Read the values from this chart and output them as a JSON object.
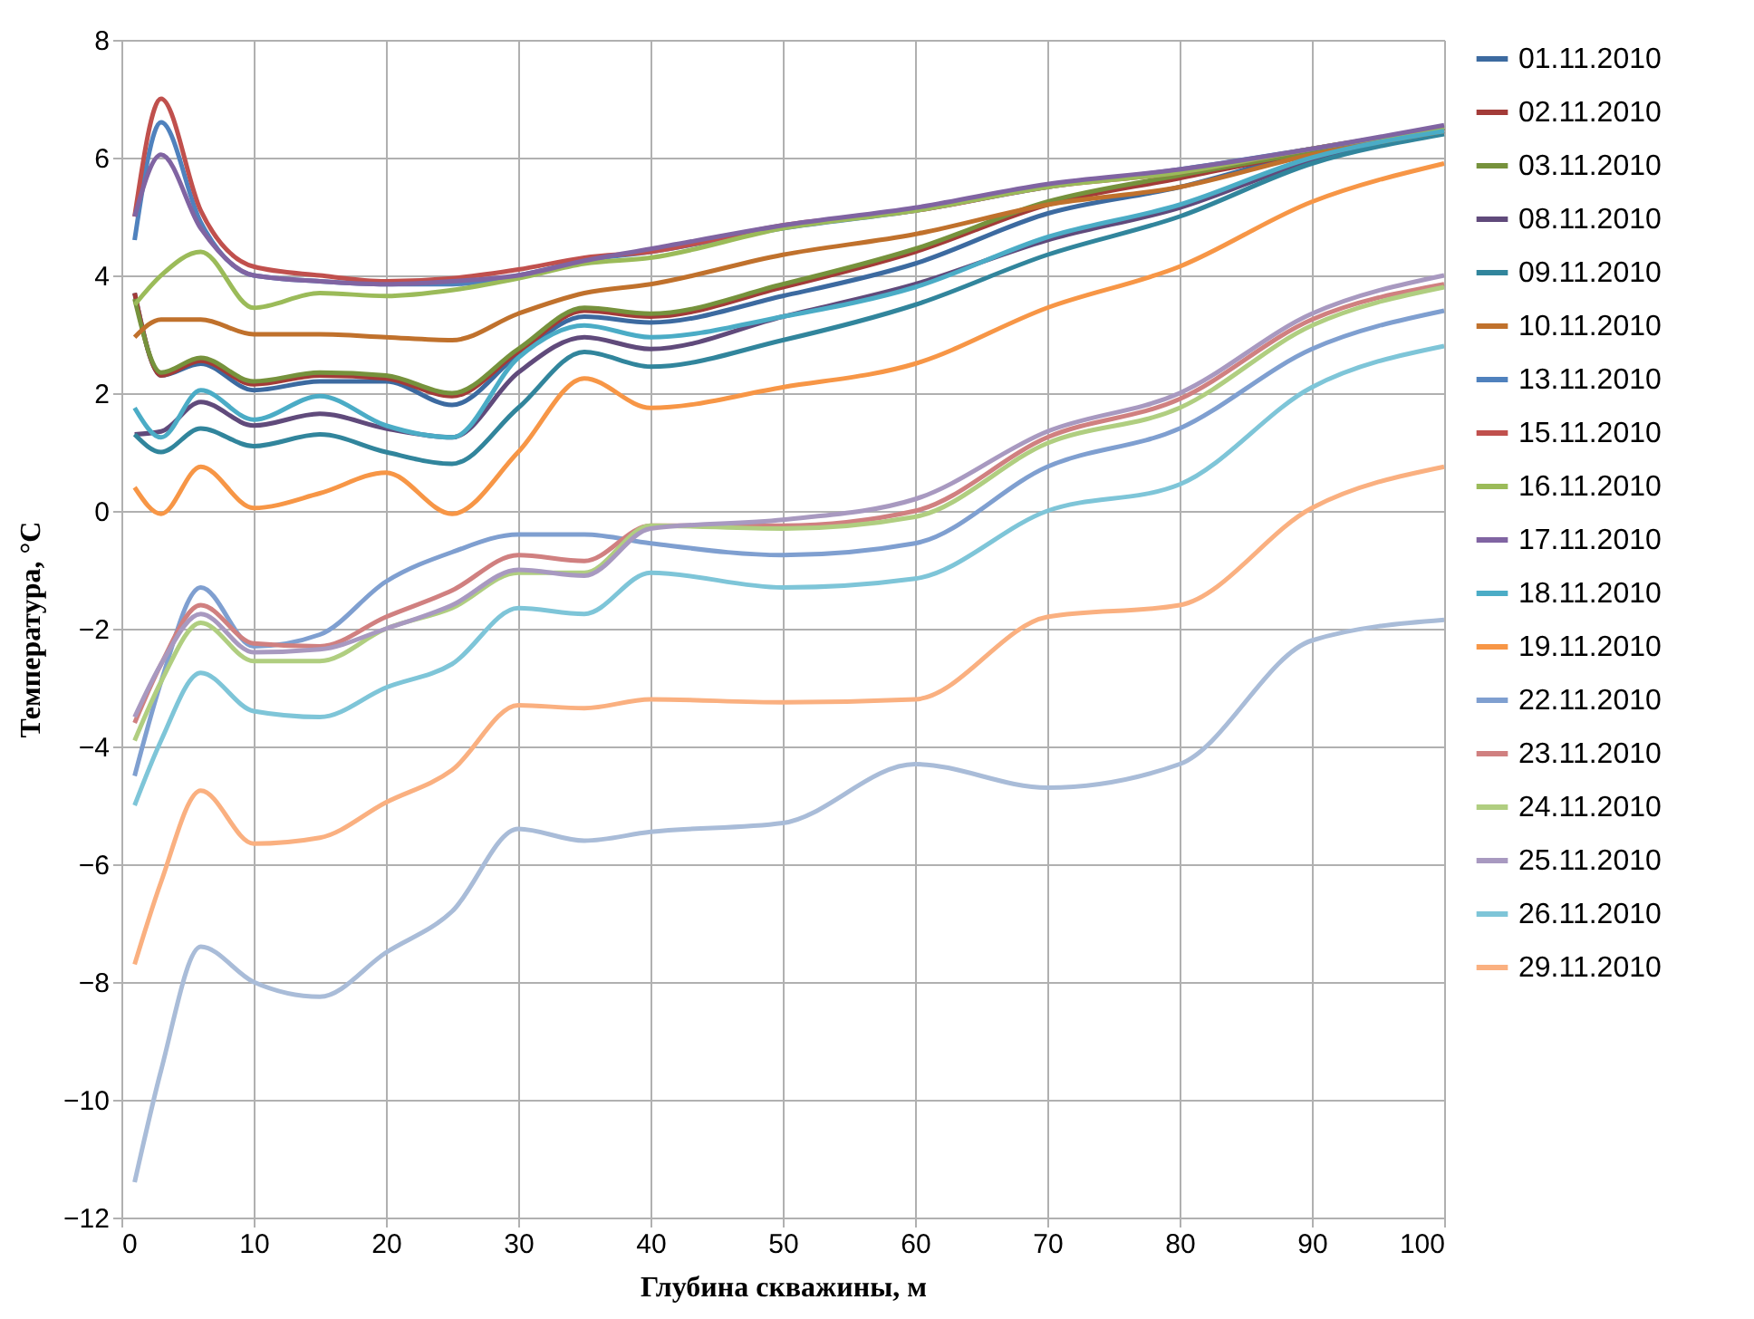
{
  "chart_data": {
    "type": "line",
    "xlabel": "Глубина скважины, м",
    "ylabel": "Температура, °C",
    "x": [
      1,
      3,
      6,
      10,
      15,
      20,
      25,
      30,
      35,
      40,
      50,
      60,
      70,
      80,
      90,
      100
    ],
    "xlim": [
      0,
      100
    ],
    "xticks": [
      0,
      10,
      20,
      30,
      40,
      50,
      60,
      70,
      80,
      90,
      100
    ],
    "ylim": [
      -12,
      8
    ],
    "yticks": [
      -12,
      -10,
      -8,
      -6,
      -4,
      -2,
      0,
      2,
      4,
      6,
      8
    ],
    "grid": true,
    "legend": "right",
    "marker": "none",
    "line_style": "solid",
    "series": [
      {
        "name": "01.11.2010",
        "color": "#3c6aa0",
        "values": [
          3.7,
          2.3,
          2.5,
          2.05,
          2.2,
          2.2,
          1.8,
          2.65,
          3.3,
          3.2,
          3.65,
          4.2,
          5.05,
          5.5,
          6.1,
          6.5
        ]
      },
      {
        "name": "02.11.2010",
        "color": "#a33b38",
        "values": [
          3.7,
          2.3,
          2.55,
          2.15,
          2.3,
          2.25,
          1.95,
          2.7,
          3.4,
          3.3,
          3.8,
          4.4,
          5.2,
          5.65,
          6.1,
          6.5
        ]
      },
      {
        "name": "03.11.2010",
        "color": "#76923c",
        "values": [
          3.6,
          2.35,
          2.6,
          2.2,
          2.35,
          2.3,
          2.0,
          2.75,
          3.45,
          3.35,
          3.85,
          4.45,
          5.25,
          5.7,
          6.1,
          6.5
        ]
      },
      {
        "name": "08.11.2010",
        "color": "#604a7b",
        "values": [
          1.3,
          1.35,
          1.85,
          1.45,
          1.65,
          1.4,
          1.25,
          2.35,
          2.95,
          2.75,
          3.3,
          3.85,
          4.6,
          5.15,
          5.95,
          6.45
        ]
      },
      {
        "name": "09.11.2010",
        "color": "#31859c",
        "values": [
          1.3,
          1.0,
          1.4,
          1.1,
          1.3,
          1.0,
          0.8,
          1.75,
          2.7,
          2.45,
          2.9,
          3.5,
          4.35,
          5.0,
          5.9,
          6.4
        ]
      },
      {
        "name": "10.11.2010",
        "color": "#c0712c",
        "values": [
          2.95,
          3.25,
          3.25,
          3.0,
          3.0,
          2.95,
          2.9,
          3.35,
          3.7,
          3.85,
          4.35,
          4.7,
          5.2,
          5.5,
          6.05,
          6.45
        ]
      },
      {
        "name": "13.11.2010",
        "color": "#4f81bd",
        "values": [
          4.6,
          6.6,
          4.9,
          4.0,
          3.9,
          3.85,
          3.85,
          4.0,
          4.25,
          4.4,
          4.8,
          5.1,
          5.5,
          5.8,
          6.15,
          6.5
        ]
      },
      {
        "name": "15.11.2010",
        "color": "#c0504d",
        "values": [
          5.0,
          7.0,
          5.1,
          4.15,
          4.0,
          3.9,
          3.95,
          4.1,
          4.3,
          4.4,
          4.85,
          5.1,
          5.5,
          5.75,
          6.15,
          6.5
        ]
      },
      {
        "name": "16.11.2010",
        "color": "#9bbb59",
        "values": [
          3.5,
          4.0,
          4.4,
          3.45,
          3.7,
          3.65,
          3.75,
          3.95,
          4.2,
          4.3,
          4.8,
          5.1,
          5.5,
          5.75,
          6.15,
          6.5
        ]
      },
      {
        "name": "17.11.2010",
        "color": "#8064a2",
        "values": [
          5.0,
          6.05,
          4.8,
          4.0,
          3.9,
          3.85,
          3.9,
          4.0,
          4.25,
          4.45,
          4.85,
          5.15,
          5.55,
          5.8,
          6.15,
          6.55
        ]
      },
      {
        "name": "18.11.2010",
        "color": "#4bacc6",
        "values": [
          1.75,
          1.25,
          2.05,
          1.55,
          1.95,
          1.45,
          1.25,
          2.6,
          3.15,
          2.95,
          3.3,
          3.8,
          4.65,
          5.2,
          6.0,
          6.45
        ]
      },
      {
        "name": "19.11.2010",
        "color": "#f79646",
        "values": [
          0.4,
          -0.05,
          0.75,
          0.05,
          0.3,
          0.65,
          -0.05,
          1.0,
          2.25,
          1.75,
          2.1,
          2.5,
          3.45,
          4.15,
          5.25,
          5.9
        ]
      },
      {
        "name": "22.11.2010",
        "color": "#7f9fd0",
        "values": [
          -4.5,
          -2.9,
          -1.3,
          -2.3,
          -2.1,
          -1.2,
          -0.7,
          -0.4,
          -0.4,
          -0.55,
          -0.75,
          -0.55,
          0.75,
          1.4,
          2.75,
          3.4
        ]
      },
      {
        "name": "23.11.2010",
        "color": "#d08080",
        "values": [
          -3.6,
          -2.6,
          -1.6,
          -2.25,
          -2.3,
          -1.8,
          -1.35,
          -0.75,
          -0.85,
          -0.25,
          -0.25,
          0.0,
          1.25,
          1.9,
          3.25,
          3.85
        ]
      },
      {
        "name": "24.11.2010",
        "color": "#b0ce80",
        "values": [
          -3.9,
          -2.9,
          -1.9,
          -2.55,
          -2.55,
          -2.0,
          -1.65,
          -1.05,
          -1.05,
          -0.25,
          -0.3,
          -0.1,
          1.15,
          1.75,
          3.15,
          3.8
        ]
      },
      {
        "name": "25.11.2010",
        "color": "#a899c0",
        "values": [
          -3.5,
          -2.6,
          -1.75,
          -2.4,
          -2.35,
          -2.0,
          -1.6,
          -1.0,
          -1.1,
          -0.3,
          -0.15,
          0.2,
          1.35,
          2.0,
          3.35,
          4.0
        ]
      },
      {
        "name": "26.11.2010",
        "color": "#7ec5d8",
        "values": [
          -5.0,
          -3.9,
          -2.75,
          -3.4,
          -3.5,
          -3.0,
          -2.6,
          -1.65,
          -1.75,
          -1.05,
          -1.3,
          -1.15,
          0.0,
          0.45,
          2.1,
          2.8
        ]
      },
      {
        "name": "29.11.2010",
        "color": "#fab080",
        "values": [
          -7.7,
          -6.3,
          -4.75,
          -5.65,
          -5.55,
          -4.95,
          -4.4,
          -3.3,
          -3.35,
          -3.2,
          -3.25,
          -3.2,
          -1.8,
          -1.6,
          0.05,
          0.75
        ]
      },
      {
        "color": "#a9bcd8",
        "values": [
          -11.4,
          -9.5,
          -7.4,
          -8.0,
          -8.25,
          -7.5,
          -6.8,
          -5.4,
          -5.6,
          -5.45,
          -5.3,
          -4.3,
          -4.7,
          -4.3,
          -2.2,
          -1.85
        ]
      }
    ]
  }
}
